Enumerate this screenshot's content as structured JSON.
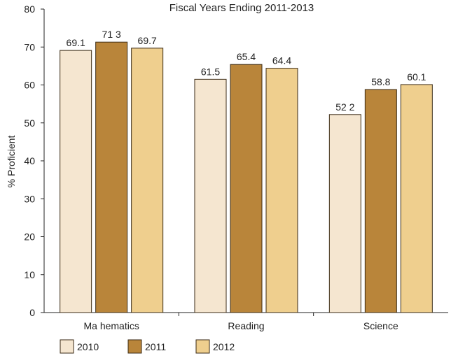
{
  "chart_data": {
    "type": "bar",
    "title": "Fiscal Years Ending 2011-2013",
    "xlabel": "",
    "ylabel": "% Proficient",
    "categories": [
      "Ma hematics",
      "Reading",
      "Science"
    ],
    "series": [
      {
        "name": "2010",
        "values": [
          69.1,
          61.5,
          52.2
        ],
        "labels": [
          "69.1",
          "61.5",
          "52 2"
        ],
        "color": "#f5e6d0"
      },
      {
        "name": "2011",
        "values": [
          71.3,
          65.4,
          58.8
        ],
        "labels": [
          "71 3",
          "65.4",
          "58.8"
        ],
        "color": "#b9853a"
      },
      {
        "name": "2012",
        "values": [
          69.7,
          64.4,
          60.1
        ],
        "labels": [
          "69.7",
          "64.4",
          "60.1"
        ],
        "color": "#efcf8e"
      }
    ],
    "ylim": [
      0,
      80
    ],
    "yticks": [
      0,
      10,
      20,
      30,
      40,
      50,
      60,
      70,
      80
    ],
    "grid": false,
    "legend_position": "bottom-left"
  }
}
